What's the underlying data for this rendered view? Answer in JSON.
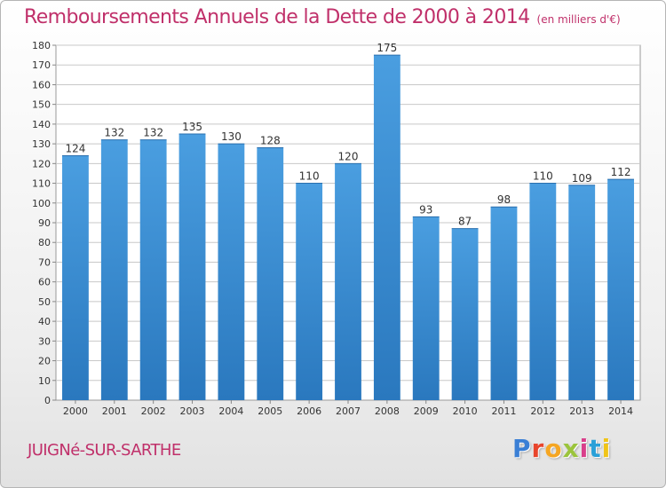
{
  "chart_data": {
    "type": "bar",
    "title": "Remboursements Annuels de la Dette de 2000 à 2014",
    "subtitle": "(en milliers d'€)",
    "categories": [
      "2000",
      "2001",
      "2002",
      "2003",
      "2004",
      "2005",
      "2006",
      "2007",
      "2008",
      "2009",
      "2010",
      "2011",
      "2012",
      "2013",
      "2014"
    ],
    "values": [
      124,
      132,
      132,
      135,
      130,
      128,
      110,
      120,
      175,
      93,
      87,
      98,
      110,
      109,
      112
    ],
    "ylim": [
      0,
      180
    ],
    "yticks": [
      0,
      10,
      20,
      30,
      40,
      50,
      60,
      70,
      80,
      90,
      100,
      110,
      120,
      130,
      140,
      150,
      160,
      170,
      180
    ],
    "grid": true,
    "xlabel": "",
    "ylabel": "",
    "bar_color": "#4a9ee0",
    "bar_color_dark": "#2a78be"
  },
  "footer": {
    "city": "JUIGNé-SUR-SARTHE",
    "logo_text": "Proxiti",
    "logo_colors": [
      "#3a7fd5",
      "#e8452c",
      "#f5a623",
      "#9bc43c",
      "#d93f8b",
      "#2aa0d8",
      "#f0c419"
    ]
  }
}
